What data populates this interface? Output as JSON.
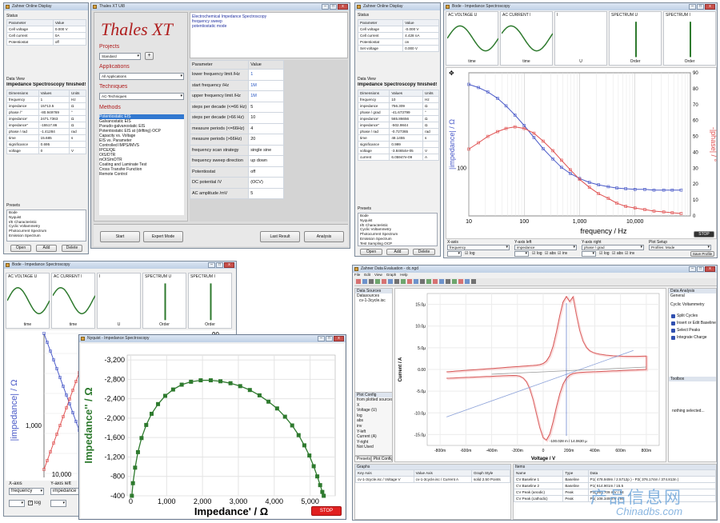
{
  "zahner": {
    "title": "Zahner Online Display",
    "status_label": "Status",
    "cols": [
      "Parameter",
      "Value"
    ],
    "rows": [
      [
        "Cell voltage",
        "0.000 V"
      ],
      [
        "Cell current",
        "0A"
      ],
      [
        "Potentiostat",
        "off"
      ]
    ],
    "dataview_label": "Data View",
    "headline": "Impedance Spectroscopy finished!",
    "dcols": [
      "Dimensions",
      "Values",
      "Units"
    ],
    "drows": [
      [
        "frequency",
        "1",
        "Hz"
      ],
      [
        "impedance",
        "15713.5",
        "Ω"
      ],
      [
        "phase /°",
        "-80.949769",
        "°"
      ],
      [
        "impedance'",
        "2471.7363",
        "Ω"
      ],
      [
        "impedance''",
        "-15517.86",
        "Ω"
      ],
      [
        "phase / rad",
        "-1.41284",
        "rad"
      ],
      [
        "time",
        "15.685",
        "s"
      ],
      [
        "significance",
        "0.695",
        ""
      ],
      [
        "voltage",
        "0",
        "V"
      ]
    ],
    "presets_label": "Presets",
    "presets": [
      "Bode",
      "Nyquist",
      "I/E Characteristic",
      "Cyclic Voltammetry",
      "Photocurrent Spectrum",
      "Emission Spectrum"
    ],
    "btns": [
      "Open",
      "Add",
      "Delete"
    ]
  },
  "thales": {
    "title": "Thales XT UI8",
    "logo": "Thales XT",
    "projects": "Projects",
    "project_val": "Standard",
    "plus": "+",
    "applications": "Applications",
    "app_val": "All Applications",
    "techniques": "Techniques",
    "tech_val": "AC-Techniques",
    "methods": "Methods",
    "method_items": [
      "Potentiostatic EIS",
      "Galvanostatic EIS",
      "Pseudo-galvanostatic EIS",
      "Potentiostatic EIS at (drifting) OCP",
      "Capacity vs. Voltage",
      "EIS vs. Parameter",
      "Controlled IMPS/IMVS",
      "IPCE/QE",
      "OIS/DTR",
      "mOIS/mDTR",
      "Coating and Laminate Test",
      "Cross Transfer Function",
      "Remote Control"
    ],
    "desc": [
      "Electrochemical Impedance Spectroscopy",
      "frequency sweep",
      "potentiostatic mode"
    ],
    "pcols": [
      "Parameter",
      "Value"
    ],
    "params": [
      [
        "lower frequency limit /Hz",
        "1"
      ],
      [
        "start frequency /Hz",
        "1M"
      ],
      [
        "upper frequency limit /Hz",
        "1M"
      ],
      [
        "steps per decade (<=66 Hz)",
        "5"
      ],
      [
        "steps per decade (>66 Hz)",
        "10"
      ],
      [
        "measure periods (<=66Hz)",
        "4"
      ],
      [
        "measure periods (>66Hz)",
        "20"
      ],
      [
        "frequency scan strategy",
        "single sine"
      ],
      [
        "frequency sweep direction",
        "up down"
      ],
      [
        "Potentiostat",
        "off"
      ],
      [
        "DC potential /V",
        "(OCV)"
      ],
      [
        "AC amplitude /mV",
        "5"
      ]
    ],
    "bottom_btns": [
      "Start",
      "Expert Mode",
      "Last Result",
      "Analysis"
    ]
  },
  "zahner2": {
    "title": "Zahner Online Display",
    "status_label": "Status",
    "cols": [
      "Parameter",
      "Value"
    ],
    "rows": [
      [
        "Cell voltage",
        "-0.000 V"
      ],
      [
        "Cell current",
        "4.428 nA"
      ],
      [
        "Potentiostat",
        "on"
      ],
      [
        "Set voltage",
        "0.000 V"
      ]
    ],
    "dataview_label": "Data View",
    "headline": "Impedance Spectroscopy finished!",
    "dcols": [
      "Dimensions",
      "Values",
      "Units"
    ],
    "drows": [
      [
        "frequency",
        "10",
        "Hz"
      ],
      [
        "impedance",
        "756.309",
        "Ω"
      ],
      [
        "phase / grad",
        "-41.673799",
        "°"
      ],
      [
        "impedance'",
        "565.86656",
        "Ω"
      ],
      [
        "impedance''",
        "-502.9844",
        "Ω"
      ],
      [
        "phase / rad",
        "-0.727365",
        "rad"
      ],
      [
        "time",
        "48.1455",
        "s"
      ],
      [
        "significance",
        "0.999",
        ""
      ],
      [
        "voltage",
        "-3.84654e-05",
        "V"
      ],
      [
        "current",
        "6.05947e-09",
        "A"
      ]
    ],
    "presets_label": "Presets",
    "presets": [
      "Bode",
      "Nyquist",
      "I/E Characteristic",
      "Cyclic Voltammetry",
      "Photocurrent Spectrum",
      "Emission Spectrum",
      "Test Sampling OCP",
      "Test Sampling AC"
    ],
    "btns": [
      "Open",
      "Add",
      "Delete"
    ]
  },
  "bode_big": {
    "title": "Bode - Impedance Spectroscopy",
    "thumbs": [
      {
        "title": "AC VOLTAGE U",
        "x": "time"
      },
      {
        "title": "AC CURRENT I",
        "x": "time"
      },
      {
        "title": "I",
        "x": "U"
      },
      {
        "title": "SPECTRUM U",
        "x": "Order"
      },
      {
        "title": "SPECTRUM I",
        "x": "Order"
      }
    ],
    "ylabel": "|impedance| / Ω",
    "y2label": "-|phase| / °",
    "xlabel": "frequency / Hz",
    "stop": "STOP",
    "ctrl": [
      {
        "label": "X-axis",
        "val": "frequency"
      },
      {
        "label": "Y-axis left",
        "val": "impedance"
      },
      {
        "label": "Y-axis right",
        "val": "phase / grad"
      },
      {
        "label": "Plot Setup",
        "val": "Profiles: Mode"
      }
    ],
    "cb": [
      "log",
      "abs",
      "inv"
    ],
    "save": "Save Profile"
  },
  "bode_small": {
    "title": "Bode - Impedance Spectroscopy",
    "thumbs": [
      {
        "title": "AC VOLTAGE U",
        "x": "time"
      },
      {
        "title": "AC CURRENT I",
        "x": "time"
      },
      {
        "title": "I",
        "x": "U"
      },
      {
        "title": "SPECTRUM U",
        "x": "Order"
      },
      {
        "title": "SPECTRUM I",
        "x": "Order"
      }
    ],
    "ylabel": "|impedance| / Ω",
    "ytick": "1,000",
    "xtick": "10,000",
    "ytop": "90",
    "xaxis_label": "X-axis",
    "xaxis_val": "frequency",
    "yaxis_label": "Y-axis left",
    "yaxis_val": "impedance",
    "log": "log"
  },
  "nyquist": {
    "title": "Nyquist - Impedance Spectroscopy",
    "xlabel": "Impedance' / Ω",
    "ylabel": "Impedance'' / Ω",
    "stop": "STOP"
  },
  "ev": {
    "title": "Zahner Data Evaluation - dc.ngd",
    "menu": [
      "File",
      "Edit",
      "View",
      "Graph",
      "Help"
    ],
    "datasources": "Data Sources",
    "ds_item": "cv-1-3cycle.isc",
    "datasources2": "Datasources",
    "plotcfg": "Plot Config",
    "plotrows": [
      "from plotted sources only",
      "X",
      "Voltage (U)",
      "log",
      "abs",
      "inv",
      "Y-left",
      "Current (A)",
      "Y-right",
      "Not Used"
    ],
    "tabs": [
      "Presets",
      "Plot Config"
    ],
    "xlabel": "Voltage / V",
    "ylabel": "Current / A",
    "annot": "-100.028 m / 14.0630 µ",
    "analysis": "Data Analysis",
    "general": "General",
    "cyclic": "Cyclic Voltammetry",
    "tools": [
      "Split Cycles",
      "Insert or Edit Baseline",
      "Select Peaks",
      "Integrate Charge"
    ],
    "toolbox": "Toolbox",
    "nothing": "nothing selected...",
    "graphs": "Graphs",
    "gcols": [
      "Key Axis",
      "Value Axis",
      "Graph Style"
    ],
    "grow": [
      "cv-1-3cycle.isc / Voltage V",
      "cv-1-3cycle.isc / Current A",
      "solid",
      "2.50",
      "Points"
    ],
    "items": "Items",
    "icols": [
      "Name",
      "Type",
      "Data"
    ],
    "irows": [
      [
        "CV Baseline 1",
        "Baseline",
        "P1( 478.949m / 2.5712p ) - P2( 376.174m / 374.813n )"
      ],
      [
        "CV Baseline 2",
        "Baseline",
        "P1( 614.901m / 15.5"
      ],
      [
        "CV Peak (anodic)",
        "Peak",
        "P1( 261.709 mV / 94"
      ],
      [
        "CV Peak (cathodic)",
        "Peak",
        "P1( 108.349 mV / 94"
      ]
    ]
  },
  "watermark": {
    "cn": "产品信息网",
    "en": "Chinadbs.com"
  },
  "colors": {
    "blue": "#4a5ac8",
    "red": "#e05050",
    "green": "#2e7a2e",
    "cv": "#d04040",
    "stop": "#e02020"
  },
  "chart_data": [
    {
      "type": "line",
      "title": "Bode - Impedance Spectroscopy",
      "xlabel": "frequency / Hz",
      "ylabel": "|impedance| / Ω",
      "y2label": "-|phase| / °",
      "xscale": "log",
      "yscale": "log",
      "x_ticks": [
        "10",
        "100",
        "1,000",
        "10,000"
      ],
      "y_ticks": [
        "100"
      ],
      "y2_ticks": [
        "0",
        "10",
        "20",
        "30",
        "40",
        "50",
        "60",
        "70",
        "80",
        "90"
      ],
      "xlim": [
        10,
        100000
      ],
      "y2lim": [
        0,
        90
      ],
      "series": [
        {
          "x": [
            10,
            15,
            22,
            33,
            47,
            68,
            100,
            150,
            220,
            330,
            470,
            680,
            1000,
            1500,
            2200,
            3300,
            4700,
            6800,
            10000,
            15000,
            22000,
            33000,
            47000,
            68000
          ],
          "values": [
            756,
            700,
            630,
            540,
            450,
            360,
            280,
            210,
            160,
            125,
            102,
            88,
            78,
            71,
            67,
            64,
            62,
            61,
            60,
            60,
            59,
            59,
            59,
            59
          ]
        },
        {
          "x": [
            10,
            15,
            22,
            33,
            47,
            68,
            100,
            150,
            220,
            330,
            470,
            680,
            1000,
            1500,
            2200,
            3300,
            4700,
            6800,
            10000,
            15000,
            22000,
            33000,
            47000,
            68000
          ],
          "values": [
            42,
            46,
            50,
            53,
            55,
            56,
            55,
            52,
            47,
            41,
            35,
            29,
            23,
            18,
            14,
            11,
            8,
            6,
            5,
            4,
            3,
            2.5,
            2,
            1.5
          ]
        }
      ]
    },
    {
      "type": "scatter",
      "title": "Nyquist - Impedance Spectroscopy",
      "xlabel": "Impedance' / Ω",
      "ylabel": "Impedance'' / Ω",
      "xlim": [
        -100,
        5700
      ],
      "ylim": [
        -3300,
        -400
      ],
      "x_ticks": [
        "0",
        "1,000",
        "2,000",
        "3,000",
        "4,000",
        "5,000"
      ],
      "y_ticks": [
        "-3,200",
        "-2,800",
        "-2,400",
        "-2,000",
        "-1,600",
        "-1,200",
        "-800",
        "-400"
      ],
      "x": [
        30,
        60,
        120,
        200,
        300,
        430,
        580,
        760,
        960,
        1180,
        1420,
        1680,
        1950,
        2230,
        2500,
        2780,
        3050,
        3320,
        3590,
        3840,
        4080,
        4300,
        4500,
        4680,
        4840,
        4980,
        5100,
        5200,
        5280,
        5340,
        5380
      ],
      "values": [
        -400,
        -660,
        -980,
        -1300,
        -1590,
        -1860,
        -2090,
        -2290,
        -2460,
        -2590,
        -2690,
        -2750,
        -2780,
        -2780,
        -2760,
        -2720,
        -2660,
        -2580,
        -2470,
        -2340,
        -2200,
        -2030,
        -1850,
        -1650,
        -1440,
        -1230,
        -1010,
        -800,
        -620,
        -480,
        -400
      ]
    },
    {
      "type": "line",
      "title": "Cyclic Voltammetry",
      "xlabel": "Voltage / V",
      "ylabel": "Current / A",
      "x_ticks": [
        "-800m",
        "-600m",
        "-400m",
        "-200m",
        "0",
        "200m",
        "400m",
        "600m",
        "800m"
      ],
      "y_ticks": [
        "15.0µ",
        "10.0µ",
        "5.0µ",
        "0.00",
        "-5.0µ",
        "-10.0µ",
        "-15.0µ"
      ],
      "xlim": [
        -0.9,
        0.9
      ],
      "ylim": [
        -1.6e-05,
        1.6e-05
      ]
    }
  ]
}
